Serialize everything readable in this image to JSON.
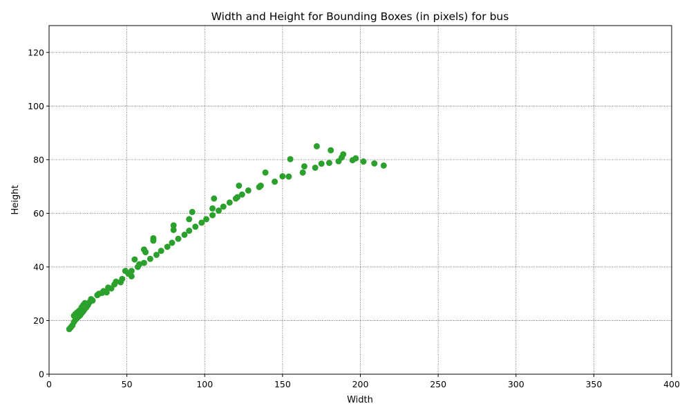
{
  "chart_data": {
    "type": "scatter",
    "title": "Width and Height for Bounding Boxes (in pixels) for bus",
    "xlabel": "Width",
    "ylabel": "Height",
    "xlim": [
      0,
      400
    ],
    "ylim": [
      0,
      130
    ],
    "xticks": [
      0,
      50,
      100,
      150,
      200,
      250,
      300,
      350,
      400
    ],
    "yticks": [
      0,
      20,
      40,
      60,
      80,
      100,
      120
    ],
    "grid": true,
    "legend": "none",
    "colors": {
      "points": "#2ca02c",
      "grid": "#555555"
    },
    "series": [
      {
        "x": [
          13,
          14,
          15,
          16,
          16,
          17,
          17,
          18,
          18,
          19,
          19,
          20,
          20,
          21,
          21,
          22,
          22,
          23,
          23,
          24,
          25,
          26,
          27,
          28,
          31,
          32,
          34,
          35,
          37,
          38,
          40,
          42,
          43,
          46,
          47,
          49,
          51,
          53,
          53,
          55,
          57,
          58,
          61,
          61,
          62,
          65,
          67,
          67,
          69,
          72,
          76,
          79,
          80,
          80,
          83,
          87,
          90,
          90,
          92,
          94,
          98,
          101,
          105,
          105,
          106,
          109,
          112,
          116,
          120,
          121,
          122,
          124,
          128,
          135,
          136,
          139,
          145,
          150,
          154,
          155,
          163,
          164,
          171,
          172,
          175,
          180,
          181,
          186,
          188,
          189,
          195,
          197,
          202,
          209,
          215
        ],
        "y": [
          16.8,
          17.5,
          18.2,
          19.5,
          21.8,
          20.3,
          22.5,
          21.0,
          23.0,
          21.5,
          23.5,
          22.0,
          24.0,
          22.8,
          25.0,
          23.5,
          25.8,
          24.3,
          26.5,
          25.0,
          25.8,
          26.8,
          28.0,
          27.5,
          29.5,
          30.0,
          30.3,
          31.0,
          30.5,
          32.3,
          32.0,
          33.5,
          34.5,
          34.3,
          35.5,
          38.5,
          37.5,
          36.5,
          38.5,
          42.8,
          40.0,
          41.0,
          41.5,
          46.5,
          45.5,
          43.0,
          49.8,
          50.7,
          44.5,
          46.0,
          47.5,
          49.0,
          53.8,
          55.5,
          50.5,
          52.0,
          53.5,
          57.8,
          60.5,
          55.0,
          56.5,
          57.8,
          59.3,
          61.8,
          65.5,
          61.0,
          62.5,
          64.0,
          65.5,
          66.0,
          70.3,
          67.0,
          68.5,
          69.8,
          70.3,
          75.2,
          71.8,
          73.8,
          73.7,
          80.2,
          75.2,
          77.5,
          77.0,
          85.0,
          78.5,
          78.8,
          83.5,
          79.4,
          80.8,
          82.0,
          79.8,
          80.5,
          79.3,
          78.6,
          77.8
        ]
      }
    ]
  }
}
